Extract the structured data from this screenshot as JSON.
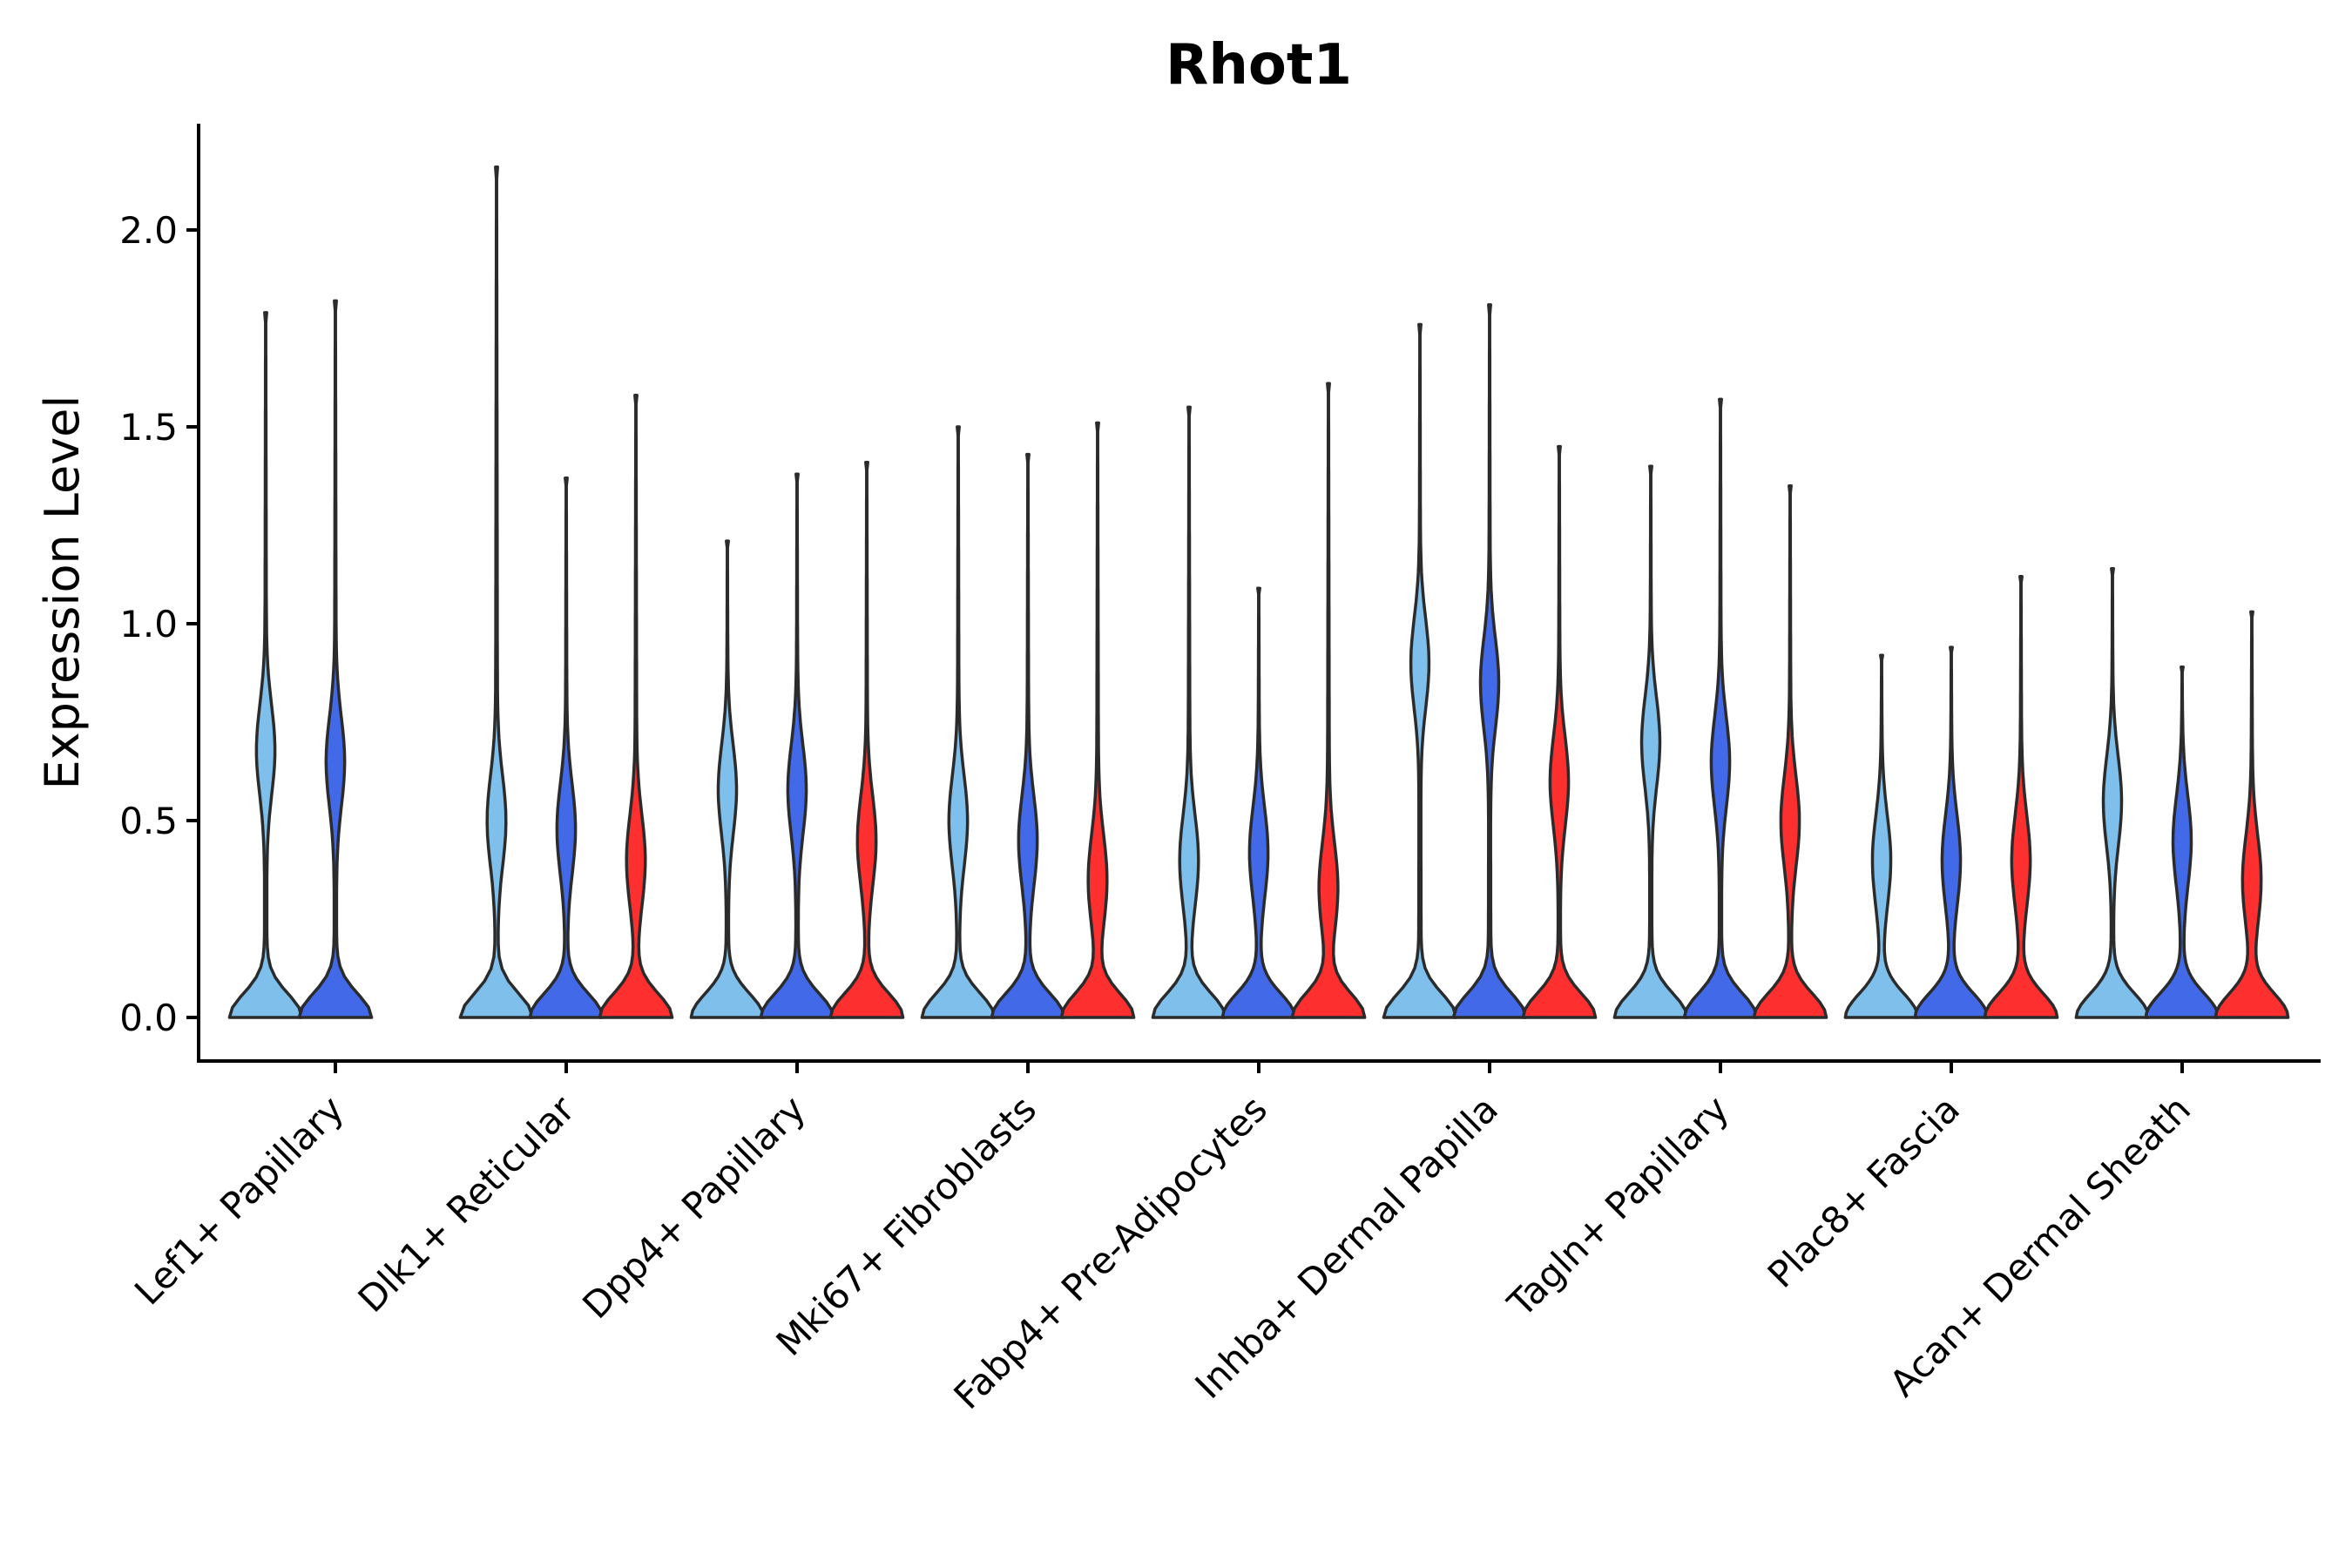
{
  "chart_data": {
    "type": "violin",
    "title": "Rhot1",
    "xlabel": "",
    "ylabel": "Expression Level",
    "ylim": [
      -0.11,
      2.28
    ],
    "yticks": [
      0.0,
      0.5,
      1.0,
      1.5,
      2.0
    ],
    "ytick_labels": [
      "0.0",
      "0.5",
      "1.0",
      "1.5",
      "2.0"
    ],
    "categories": [
      "Lef1+ Papillary",
      "Dlk1+ Reticular",
      "Dpp4+ Papillary",
      "Mki67+ Fibroblasts",
      "Fabp4+ Pre-Adipocytes",
      "Inhba+ Dermal Papilla",
      "Tagln+ Papillary",
      "Plac8+ Fascia",
      "Acan+ Dermal Sheath"
    ],
    "group_colors": [
      "#7fbfec",
      "#4169e8",
      "#fe2f2f"
    ],
    "violins": [
      {
        "category": 0,
        "group": 0,
        "max": 1.79,
        "mode": 0.68
      },
      {
        "category": 0,
        "group": 1,
        "max": 1.82,
        "mode": 0.65
      },
      {
        "category": 1,
        "group": 0,
        "max": 2.16,
        "mode": 0.5
      },
      {
        "category": 1,
        "group": 1,
        "max": 1.37,
        "mode": 0.48
      },
      {
        "category": 1,
        "group": 2,
        "max": 1.58,
        "mode": 0.4
      },
      {
        "category": 2,
        "group": 0,
        "max": 1.21,
        "mode": 0.58
      },
      {
        "category": 2,
        "group": 1,
        "max": 1.38,
        "mode": 0.58
      },
      {
        "category": 2,
        "group": 2,
        "max": 1.41,
        "mode": 0.45
      },
      {
        "category": 3,
        "group": 0,
        "max": 1.5,
        "mode": 0.5
      },
      {
        "category": 3,
        "group": 1,
        "max": 1.43,
        "mode": 0.45
      },
      {
        "category": 3,
        "group": 2,
        "max": 1.51,
        "mode": 0.35
      },
      {
        "category": 4,
        "group": 0,
        "max": 1.55,
        "mode": 0.4
      },
      {
        "category": 4,
        "group": 1,
        "max": 1.09,
        "mode": 0.42
      },
      {
        "category": 4,
        "group": 2,
        "max": 1.61,
        "mode": 0.33
      },
      {
        "category": 5,
        "group": 0,
        "max": 1.76,
        "mode": 0.9
      },
      {
        "category": 5,
        "group": 1,
        "max": 1.81,
        "mode": 0.85
      },
      {
        "category": 5,
        "group": 2,
        "max": 1.45,
        "mode": 0.6
      },
      {
        "category": 6,
        "group": 0,
        "max": 1.4,
        "mode": 0.7
      },
      {
        "category": 6,
        "group": 1,
        "max": 1.57,
        "mode": 0.65
      },
      {
        "category": 6,
        "group": 2,
        "max": 1.35,
        "mode": 0.5
      },
      {
        "category": 7,
        "group": 0,
        "max": 0.92,
        "mode": 0.4
      },
      {
        "category": 7,
        "group": 1,
        "max": 0.94,
        "mode": 0.4
      },
      {
        "category": 7,
        "group": 2,
        "max": 1.12,
        "mode": 0.4
      },
      {
        "category": 8,
        "group": 0,
        "max": 1.14,
        "mode": 0.55
      },
      {
        "category": 8,
        "group": 1,
        "max": 0.89,
        "mode": 0.45
      },
      {
        "category": 8,
        "group": 2,
        "max": 1.03,
        "mode": 0.35
      }
    ]
  }
}
